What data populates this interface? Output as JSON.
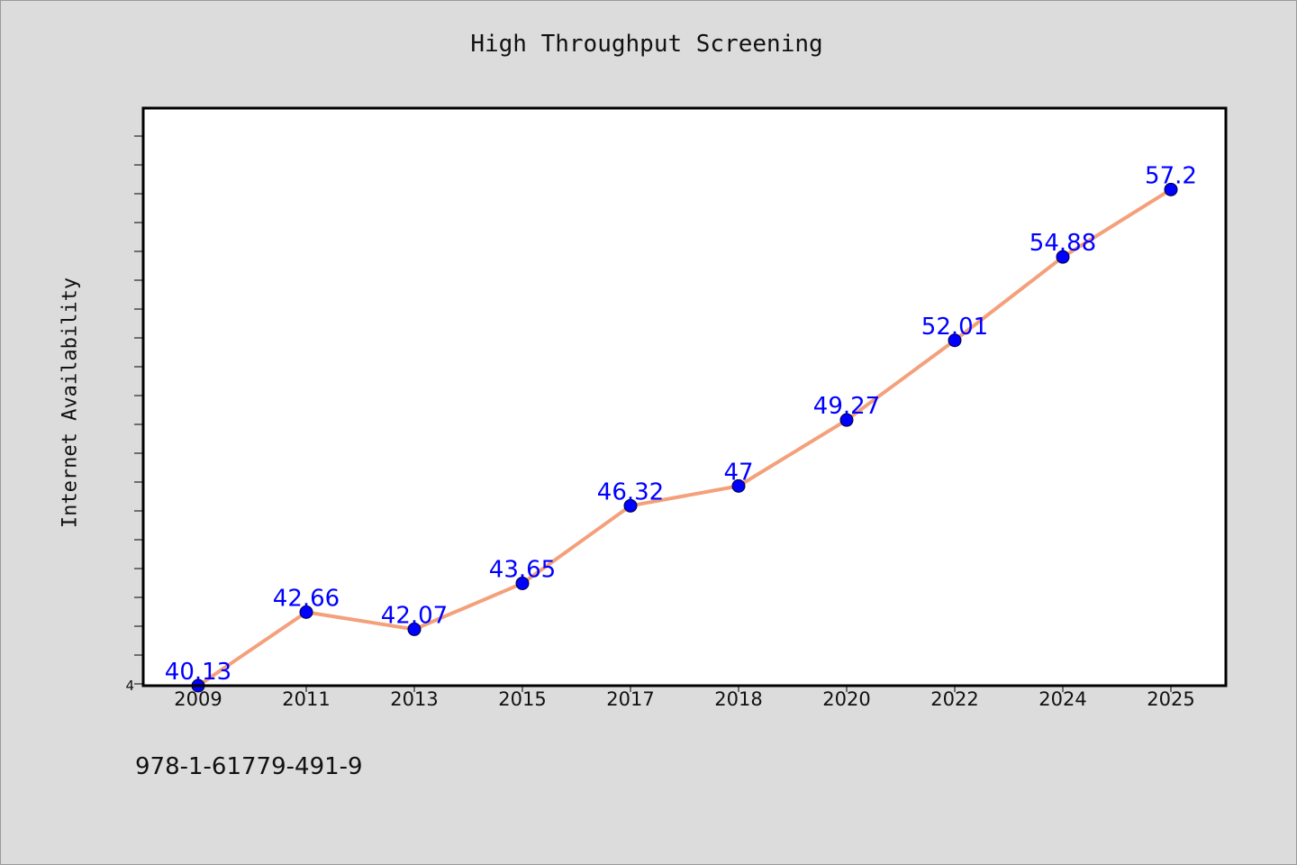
{
  "chart_data": {
    "type": "line",
    "title": "High Throughput Screening",
    "ylabel": "Internet Availability",
    "xlabel": "",
    "categories": [
      "2009",
      "2011",
      "2013",
      "2015",
      "2017",
      "2018",
      "2020",
      "2022",
      "2024",
      "2025"
    ],
    "series": [
      {
        "values": [
          40.13,
          42.66,
          42.07,
          43.65,
          46.32,
          47,
          49.27,
          52.01,
          54.88,
          57.2
        ],
        "data_labels": [
          "40.13",
          "42.66",
          "42.07",
          "43.65",
          "46.32",
          "47",
          "49.27",
          "52.01",
          "54.88",
          "57.2"
        ],
        "line_color": "#f4a07a",
        "marker_color": "#0000ff"
      }
    ],
    "ylim": [
      40.13,
      60
    ],
    "ytick_labels": [
      "4"
    ],
    "grid": false,
    "legend": "none",
    "label_color": "#0000ff"
  },
  "footer": {
    "code": "978-1-61779-491-9"
  }
}
